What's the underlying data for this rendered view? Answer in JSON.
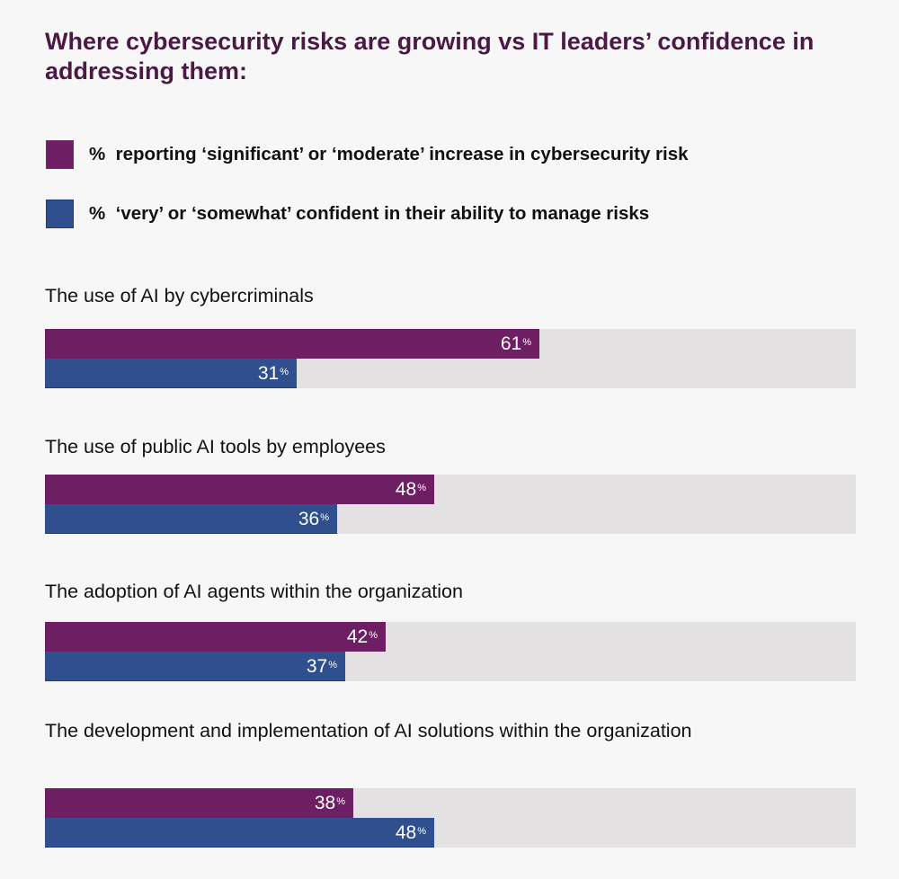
{
  "chart_data": {
    "type": "bar",
    "orientation": "horizontal",
    "title": "Where cybersecurity risks are growing vs IT leaders’ confidence in addressing them:",
    "xlim": [
      0,
      100
    ],
    "grid": false,
    "legend_position": "top-left",
    "categories": [
      "The use of AI by cybercriminals",
      "The use of public AI tools by employees",
      "The adoption of AI agents within the organization",
      "The development and implementation of AI solutions within the organization"
    ],
    "series": [
      {
        "name": "% reporting ‘significant’ or ‘moderate’ increase in cybersecurity risk",
        "color": "#6e1e63",
        "values": [
          61,
          48,
          42,
          38
        ]
      },
      {
        "name": "% ‘very’ or ‘somewhat’ confident in their ability to manage risks",
        "color": "#2f4f8f",
        "values": [
          31,
          36,
          37,
          48
        ]
      }
    ],
    "value_suffix": "%"
  },
  "legend": [
    {
      "symbol": "%",
      "text": "reporting ‘significant’ or ‘moderate’ increase in cybersecurity risk"
    },
    {
      "symbol": "%",
      "text": "‘very’ or ‘somewhat’ confident in their ability to manage risks"
    }
  ],
  "group_labels": [
    "The use of AI by cybercriminals",
    "The use of public AI tools by employees",
    "The adoption of AI agents within the organization",
    "The development and implementation of AI solutions within the organization"
  ],
  "colors": {
    "risk": "#6e1e63",
    "confidence": "#2f4f8f",
    "track": "#e3e1e2",
    "title": "#4a1a45"
  }
}
